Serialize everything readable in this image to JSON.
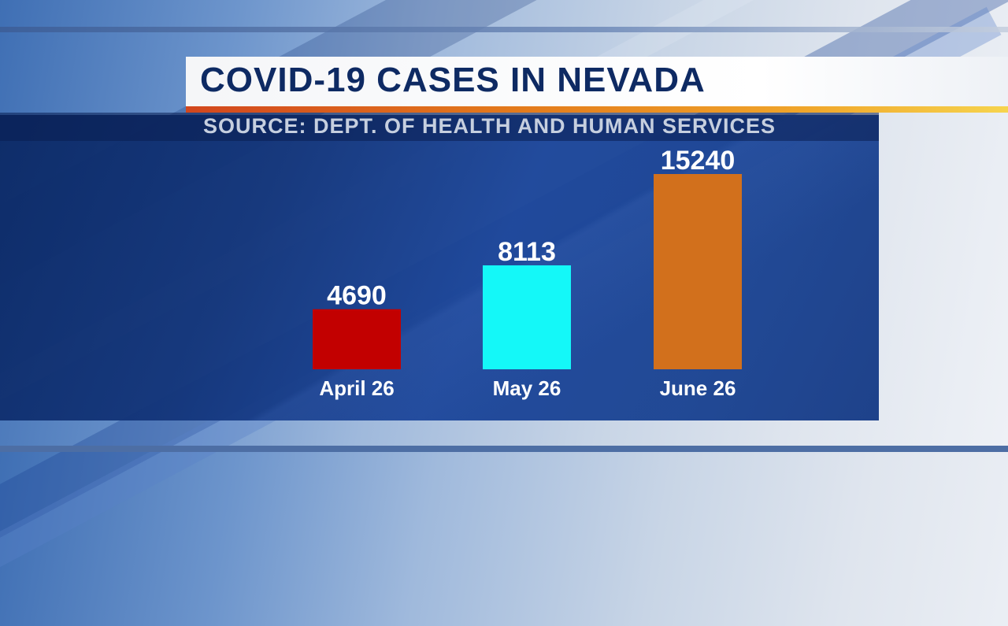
{
  "header": {
    "title": "COVID-19 CASES IN NEVADA",
    "source": "SOURCE: DEPT. OF HEALTH AND HUMAN SERVICES"
  },
  "colors": {
    "title_text": "#0e2a63",
    "panel": "#13357a",
    "accent": "#e37a1c"
  },
  "chart_data": {
    "type": "bar",
    "title": "COVID-19 CASES IN NEVADA",
    "categories": [
      "April 26",
      "May 26",
      "June 26"
    ],
    "values": [
      4690,
      8113,
      15240
    ],
    "bar_colors": [
      "#c20000",
      "#14f8f8",
      "#d2701c"
    ],
    "xlabel": "",
    "ylabel": "",
    "ylim": [
      0,
      16000
    ],
    "grid": false,
    "legend": "none"
  }
}
